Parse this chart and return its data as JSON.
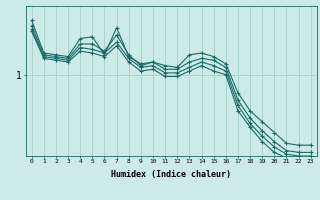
{
  "bg_color": "#cceae7",
  "line_color": "#1a6b68",
  "grid_color": "#aad4d0",
  "xlabel": "Humidex (Indice chaleur)",
  "xlim": [
    -0.5,
    23.5
  ],
  "ylim": [
    0.55,
    1.38
  ],
  "yticks": [
    1.0
  ],
  "ytick_labels": [
    "1"
  ],
  "xticks": [
    0,
    1,
    2,
    3,
    4,
    5,
    6,
    7,
    8,
    9,
    10,
    11,
    12,
    13,
    14,
    15,
    16,
    17,
    18,
    19,
    20,
    21,
    22,
    23
  ],
  "series1": [
    1.3,
    1.12,
    1.11,
    1.1,
    1.2,
    1.21,
    1.11,
    1.26,
    1.1,
    1.06,
    1.07,
    1.05,
    1.04,
    1.11,
    1.12,
    1.1,
    1.06,
    0.9,
    0.8,
    0.74,
    0.68,
    0.62,
    0.61,
    0.61
  ],
  "series2": [
    1.27,
    1.11,
    1.1,
    1.09,
    1.17,
    1.17,
    1.13,
    1.22,
    1.11,
    1.05,
    1.07,
    1.03,
    1.03,
    1.07,
    1.09,
    1.08,
    1.04,
    0.86,
    0.76,
    0.69,
    0.63,
    0.58,
    0.57,
    0.57
  ],
  "series3": [
    1.25,
    1.1,
    1.09,
    1.08,
    1.15,
    1.14,
    1.12,
    1.18,
    1.09,
    1.04,
    1.05,
    1.01,
    1.01,
    1.04,
    1.07,
    1.05,
    1.02,
    0.83,
    0.73,
    0.66,
    0.6,
    0.56,
    0.55,
    0.55
  ],
  "series4": [
    1.24,
    1.09,
    1.08,
    1.07,
    1.13,
    1.12,
    1.1,
    1.16,
    1.07,
    1.02,
    1.03,
    0.99,
    0.99,
    1.02,
    1.05,
    1.02,
    1.0,
    0.8,
    0.71,
    0.63,
    0.57,
    0.54,
    0.53,
    0.53
  ]
}
